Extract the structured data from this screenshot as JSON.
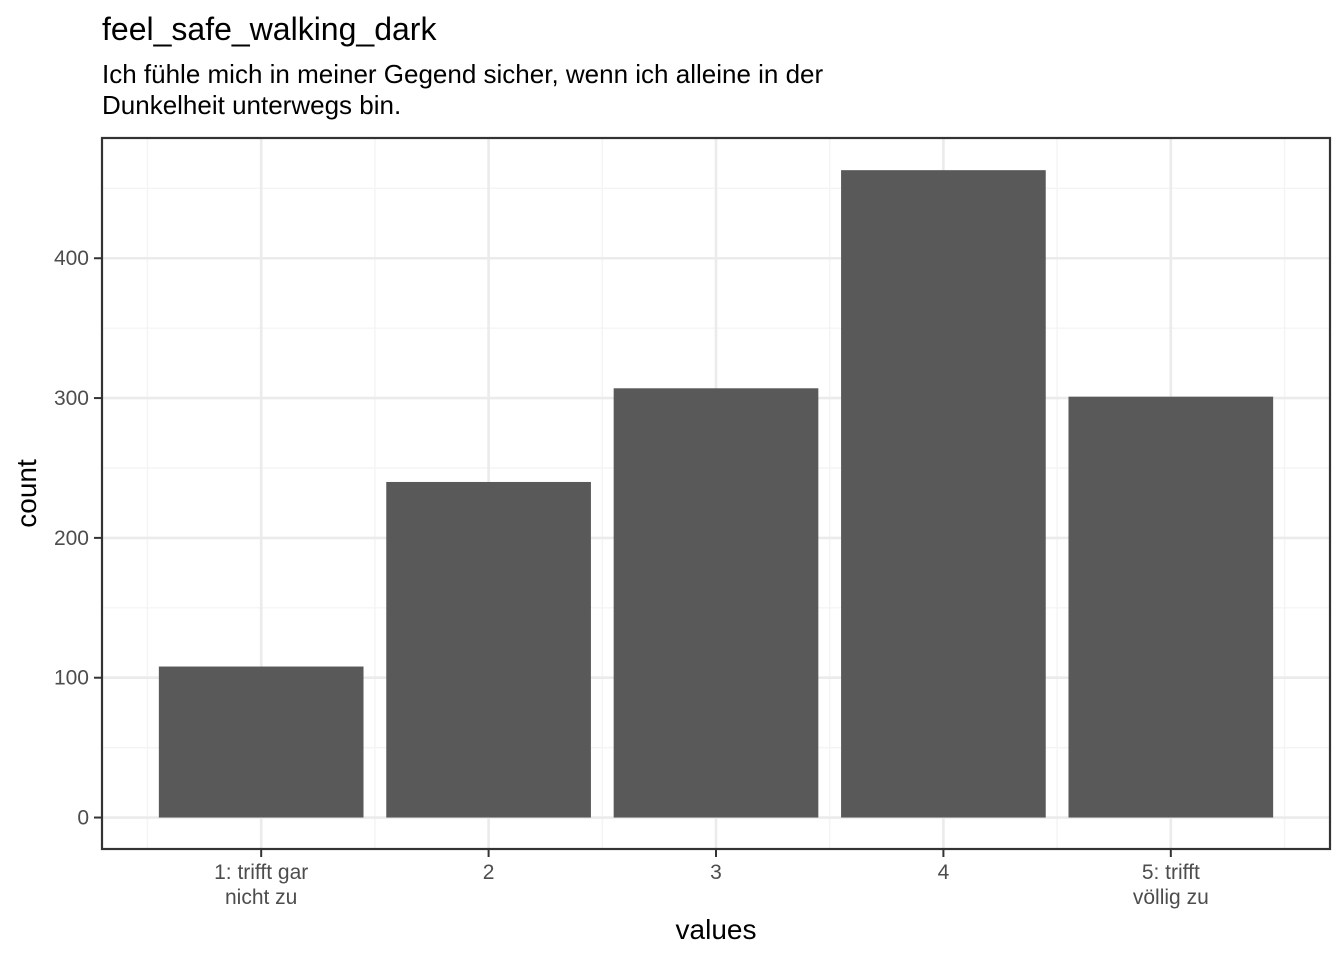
{
  "chart_data": {
    "type": "bar",
    "title": "feel_safe_walking_dark",
    "subtitle_lines": [
      "Ich fühle mich in meiner Gegend sicher, wenn ich alleine in der",
      "Dunkelheit unterwegs bin."
    ],
    "xlabel": "values",
    "ylabel": "count",
    "categories": [
      [
        "1: trifft gar",
        "nicht zu"
      ],
      [
        "2"
      ],
      [
        "3"
      ],
      [
        "4"
      ],
      [
        "5: trifft",
        "völlig zu"
      ]
    ],
    "values": [
      108,
      240,
      307,
      463,
      301
    ],
    "ylim": [
      -22.5,
      486
    ],
    "yticks": [
      0,
      100,
      200,
      300,
      400
    ],
    "grid": true,
    "colors": {
      "bar": "#595959",
      "grid_major": "#ebebeb",
      "grid_minor": "#f4f4f4",
      "panel_border": "#333333",
      "text": "#000000",
      "tick_text": "#4d4d4d"
    }
  }
}
